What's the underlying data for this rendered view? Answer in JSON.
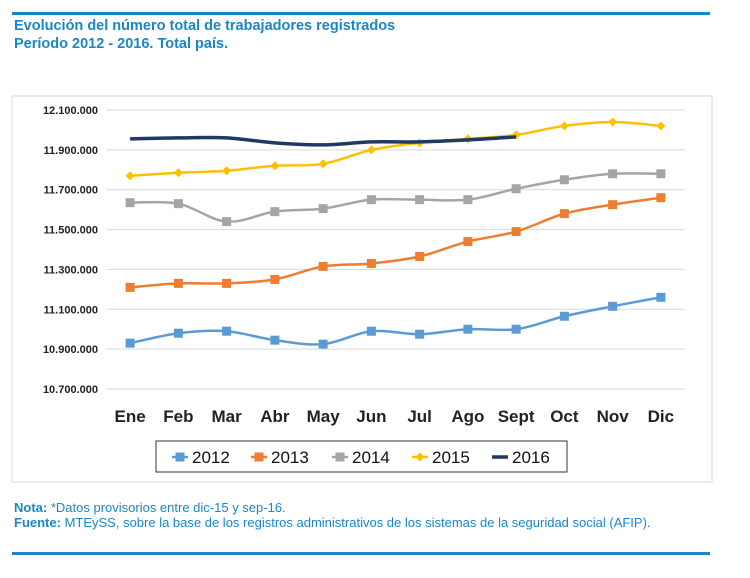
{
  "header": {
    "title_line1": "Evolución del número total de trabajadores registrados",
    "title_line2": "Período 2012 - 2016. Total país."
  },
  "chart_data": {
    "type": "line",
    "categories": [
      "Ene",
      "Feb",
      "Mar",
      "Abr",
      "May",
      "Jun",
      "Jul",
      "Ago",
      "Sept",
      "Oct",
      "Nov",
      "Dic"
    ],
    "ylim": [
      10700000,
      12100000
    ],
    "yticks": [
      10700000,
      10900000,
      11100000,
      11300000,
      11500000,
      11700000,
      11900000,
      12100000
    ],
    "ytick_labels": [
      "10.700.000",
      "10.900.000",
      "11.100.000",
      "11.300.000",
      "11.500.000",
      "11.700.000",
      "11.900.000",
      "12.100.000"
    ],
    "grid": true,
    "legend_position": "bottom",
    "series": [
      {
        "name": "2012",
        "color": "#5b9bd5",
        "marker": "square",
        "values": [
          10930000,
          10980000,
          10990000,
          10945000,
          10925000,
          10990000,
          10975000,
          11000000,
          11000000,
          11065000,
          11115000,
          11160000
        ]
      },
      {
        "name": "2013",
        "color": "#ed7d31",
        "marker": "square",
        "values": [
          11210000,
          11230000,
          11230000,
          11250000,
          11315000,
          11330000,
          11365000,
          11440000,
          11490000,
          11580000,
          11625000,
          11660000
        ]
      },
      {
        "name": "2014",
        "color": "#a5a5a5",
        "marker": "square",
        "values": [
          11635000,
          11630000,
          11540000,
          11590000,
          11605000,
          11650000,
          11650000,
          11650000,
          11705000,
          11750000,
          11780000,
          11780000
        ]
      },
      {
        "name": "2015",
        "color": "#ffc000",
        "marker": "diamond",
        "values": [
          11770000,
          11785000,
          11795000,
          11820000,
          11830000,
          11900000,
          11935000,
          11955000,
          11975000,
          12020000,
          12040000,
          12020000
        ]
      },
      {
        "name": "2016",
        "color": "#203864",
        "marker": "none",
        "values": [
          11955000,
          11960000,
          11960000,
          11935000,
          11925000,
          11940000,
          11940000,
          11950000,
          11965000,
          null,
          null,
          null
        ]
      }
    ]
  },
  "footer": {
    "note_label": "Nota:",
    "note_text": " *Datos provisorios entre dic-15 y sep-16.",
    "source_label": "Fuente:",
    "source_text": " MTEySS, sobre la base de los registros administrativos de los sistemas de la seguridad social (AFIP)."
  }
}
